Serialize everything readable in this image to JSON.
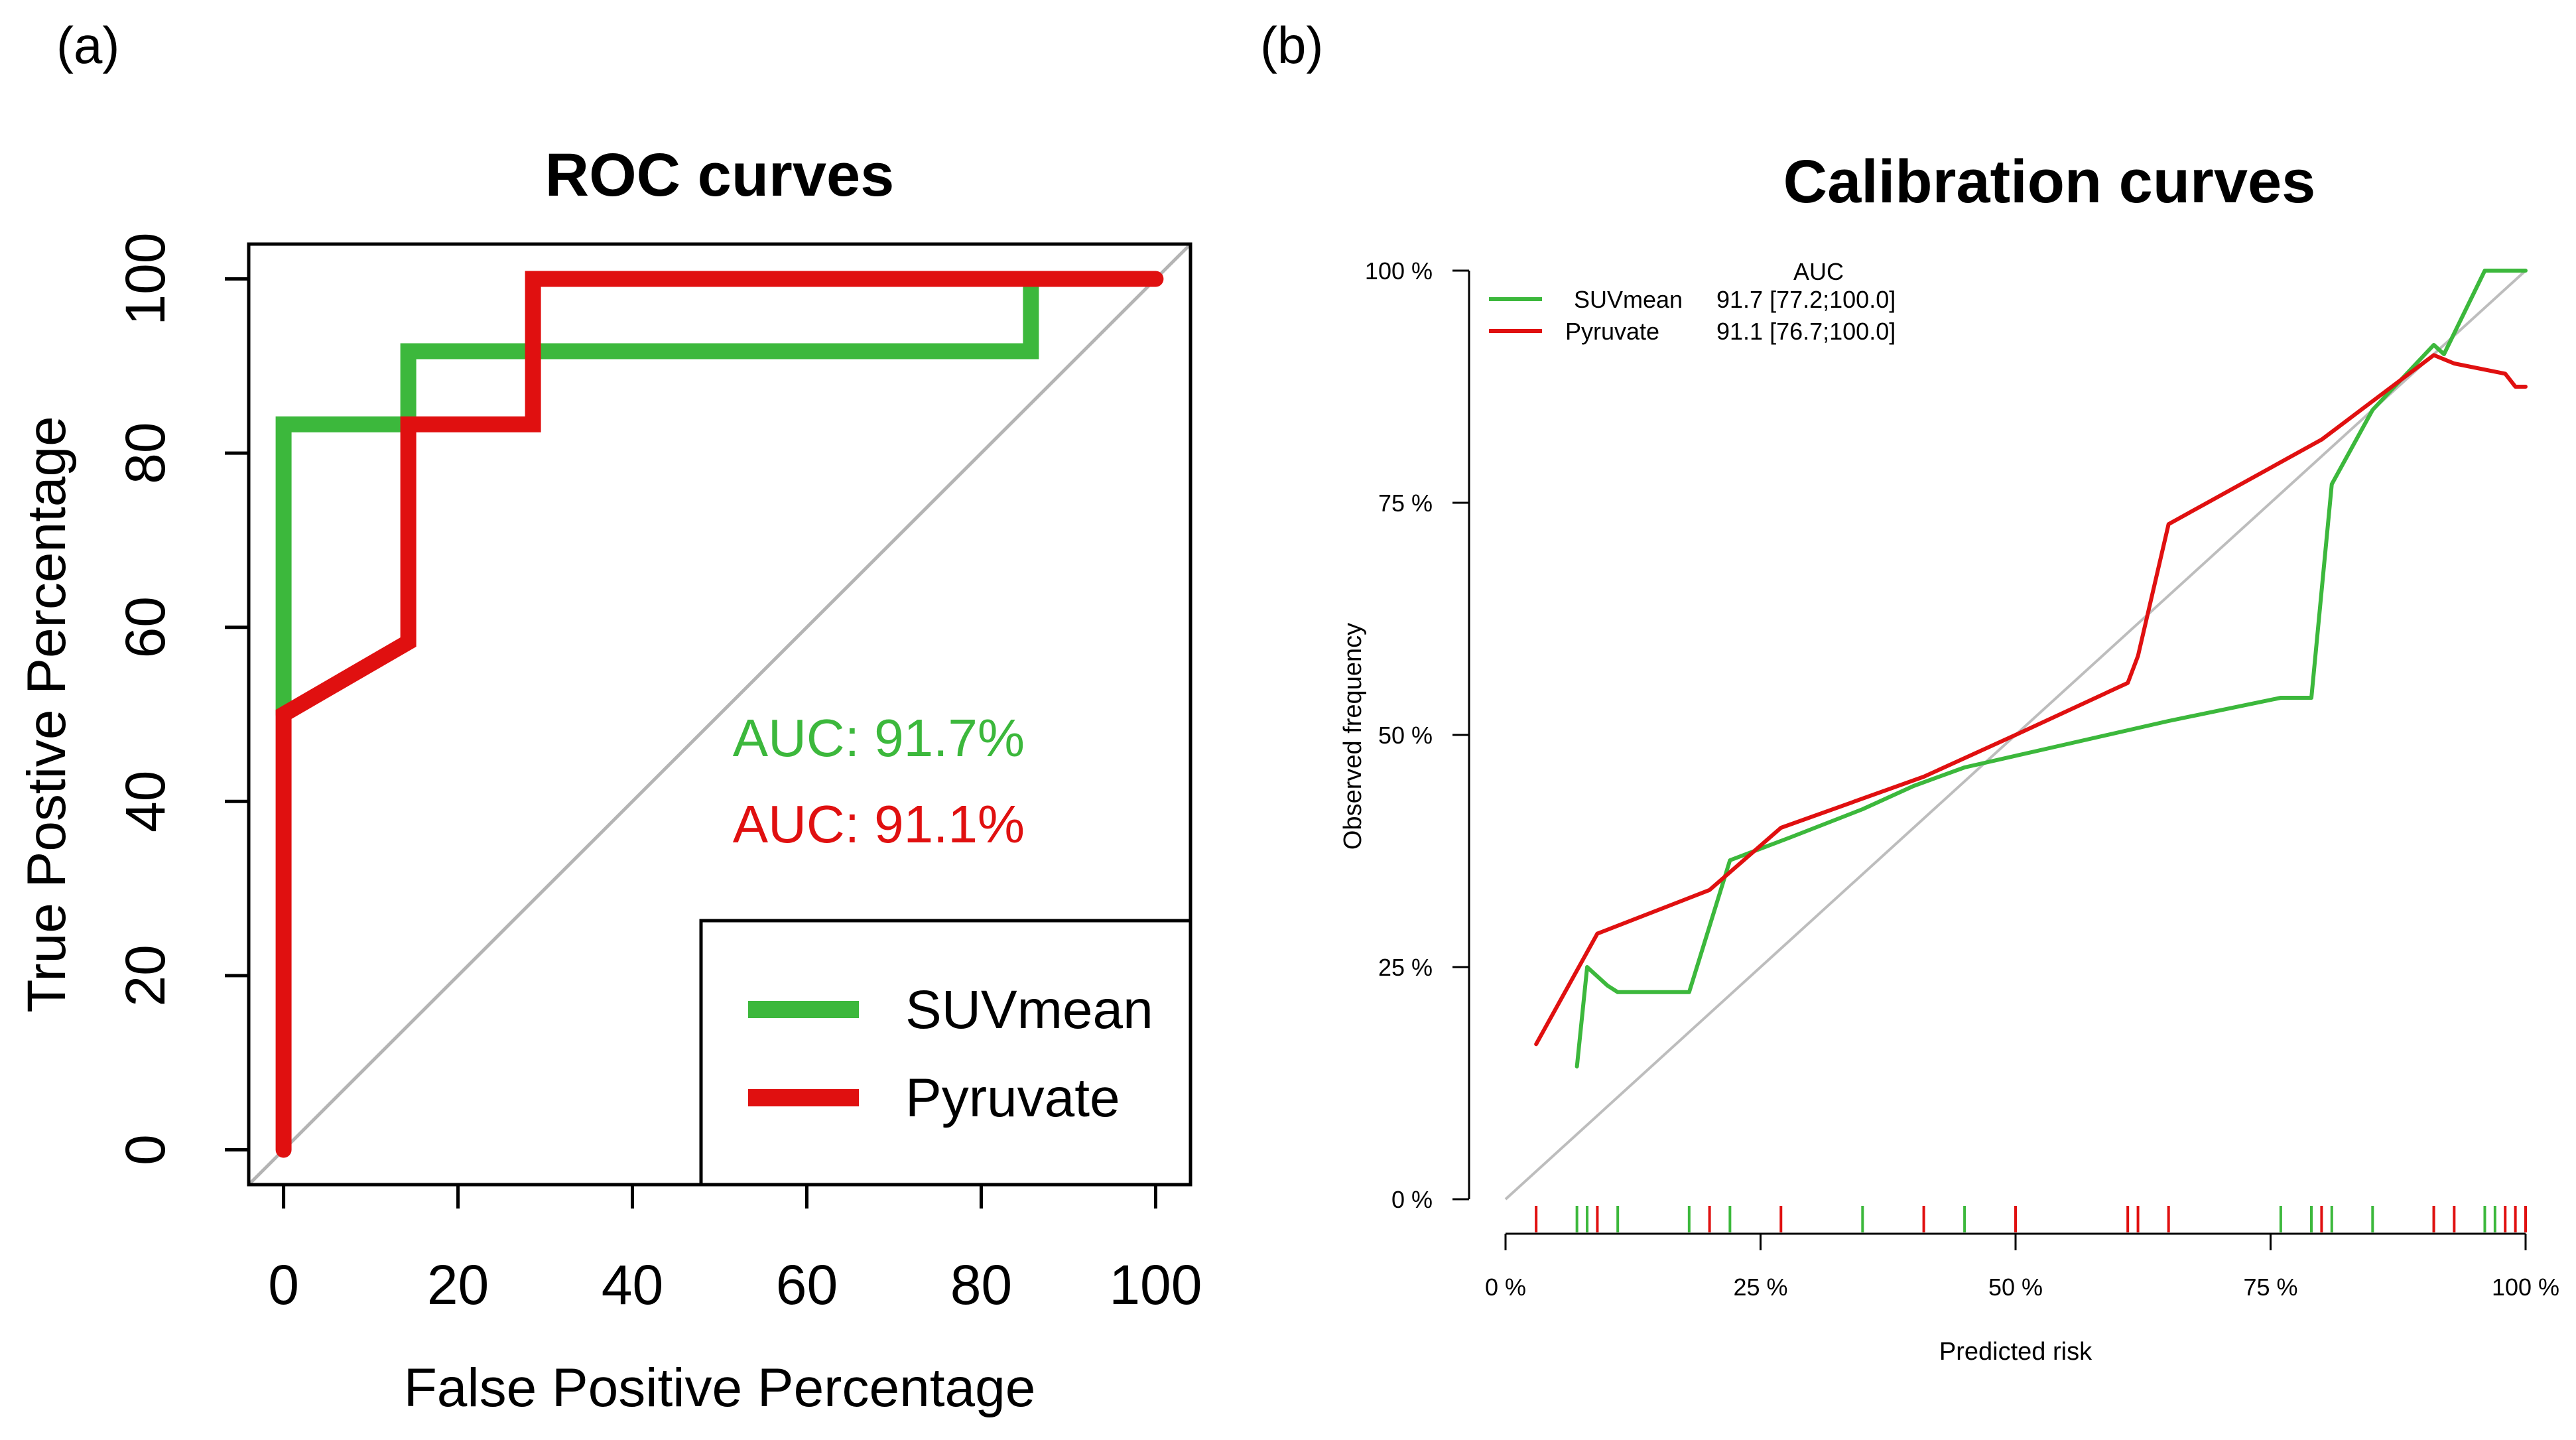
{
  "panel_a_label": "(a)",
  "panel_b_label": "(b)",
  "colors": {
    "suv": "#3cb83c",
    "pyruvate": "#e01010",
    "diagonal": "#b4b4b4"
  },
  "chart_data": [
    {
      "type": "line",
      "title": "ROC curves",
      "xlabel": "False Positive Percentage",
      "ylabel": "True Postive Percentage",
      "xlim": [
        -4,
        104
      ],
      "ylim": [
        -4,
        104
      ],
      "xticks": [
        0,
        20,
        40,
        60,
        80,
        100
      ],
      "yticks": [
        0,
        20,
        40,
        60,
        80,
        100
      ],
      "reference_line": {
        "from": [
          -4,
          -4
        ],
        "to": [
          104,
          104
        ]
      },
      "series": [
        {
          "name": "SUVmean",
          "color_key": "suv",
          "auc_label": "AUC: 91.7%",
          "x": [
            0,
            0,
            14.3,
            14.3,
            85.7,
            85.7
          ],
          "y": [
            50,
            83.3,
            83.3,
            91.7,
            91.7,
            100
          ]
        },
        {
          "name": "Pyruvate",
          "color_key": "pyruvate",
          "auc_label": "AUC: 91.1%",
          "x": [
            0,
            0,
            14.3,
            14.3,
            28.6,
            28.6,
            100
          ],
          "y": [
            0,
            50,
            58.3,
            83.3,
            83.3,
            100,
            100
          ]
        }
      ],
      "legend": {
        "position": "bottom-right",
        "entries": [
          "SUVmean",
          "Pyruvate"
        ]
      }
    },
    {
      "type": "line",
      "title": "Calibration curves",
      "xlabel": "Predicted risk",
      "ylabel": "Observed frequency",
      "xlim": [
        0,
        100
      ],
      "ylim": [
        0,
        100
      ],
      "xticks": [
        0,
        25,
        50,
        75,
        100
      ],
      "xtick_labels": [
        "0 %",
        "25 %",
        "50 %",
        "75 %",
        "100 %"
      ],
      "yticks": [
        0,
        25,
        50,
        75,
        100
      ],
      "ytick_labels": [
        "0 %",
        "25 %",
        "50 %",
        "75 %",
        "100 %"
      ],
      "legend_header": "AUC",
      "series": [
        {
          "name": "SUVmean",
          "color_key": "suv",
          "auc_text": "91.7 [77.2;100.0]",
          "x": [
            7,
            8,
            10,
            11,
            15,
            18,
            22,
            28,
            35,
            40,
            45,
            55,
            65,
            76,
            78,
            79,
            81,
            85,
            91,
            92,
            96,
            100
          ],
          "y": [
            14.3,
            25,
            23,
            22.3,
            22.3,
            22.3,
            36.5,
            39,
            42,
            44.5,
            46.5,
            49,
            51.5,
            54,
            54,
            54,
            77,
            85,
            92,
            91,
            100,
            100
          ]
        },
        {
          "name": "Pyruvate",
          "color_key": "pyruvate",
          "auc_text": "91.1 [76.7;100.0]",
          "x": [
            3,
            9,
            20,
            27,
            41,
            50,
            61,
            62,
            65,
            80,
            91,
            93,
            98,
            99,
            100
          ],
          "y": [
            16.7,
            28.6,
            33.3,
            40,
            45.5,
            50,
            55.6,
            58.5,
            72.7,
            81.8,
            90.9,
            90,
            88.9,
            87.5,
            87.5
          ]
        }
      ],
      "rug": {
        "suv": [
          7,
          8,
          11,
          18,
          22,
          35,
          45,
          76,
          79,
          81,
          85,
          91,
          96,
          97
        ],
        "pyruvate": [
          3,
          9,
          20,
          27,
          41,
          50,
          61,
          62,
          65,
          80,
          91,
          93,
          98,
          99,
          100
        ]
      }
    }
  ]
}
